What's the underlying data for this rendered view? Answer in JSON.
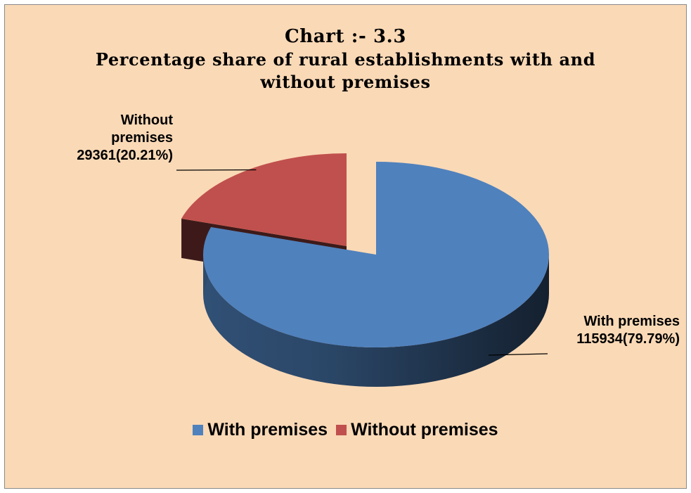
{
  "chart_data": {
    "type": "pie",
    "title": "Chart :- 3.3",
    "subtitle": "Percentage share of rural establishments with and without premises",
    "legend_position": "bottom",
    "style": "3d-exploded",
    "series": [
      {
        "name": "With premises",
        "value": 115934,
        "percent": 79.79,
        "label_lines": [
          "With premises",
          "115934(79.79%)"
        ],
        "color": "#4f81bd"
      },
      {
        "name": "Without premises",
        "value": 29361,
        "percent": 20.21,
        "label_lines": [
          "Without",
          "premises",
          "29361(20.21%)"
        ],
        "color": "#c0504d"
      }
    ]
  },
  "colors": {
    "background": "#fad9b6",
    "with_premises": "#4f81bd",
    "without_premises": "#c0504d"
  }
}
